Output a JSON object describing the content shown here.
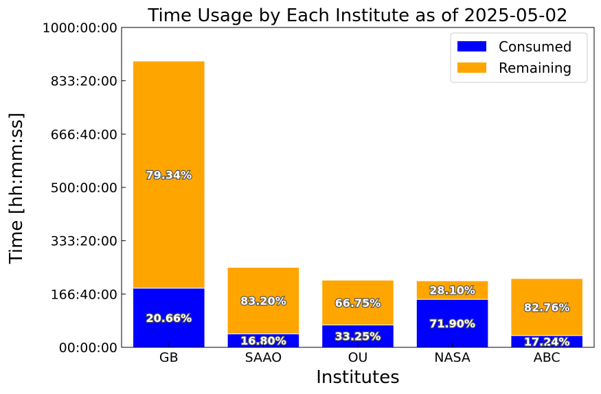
{
  "chart_data": {
    "type": "bar",
    "stacked": true,
    "title": "Time Usage by Each Institute as of 2025-05-02",
    "xlabel": "Institutes",
    "ylabel": "Time [hh:mm:ss]",
    "categories": [
      "GB",
      "SAAO",
      "OU",
      "NASA",
      "ABC"
    ],
    "ylim": [
      0,
      1000
    ],
    "yticks": [
      0,
      166.667,
      333.333,
      500,
      666.667,
      833.333,
      1000
    ],
    "ytick_labels": [
      "00:00:00",
      "166:40:00",
      "333:20:00",
      "500:00:00",
      "666:40:00",
      "833:20:00",
      "1000:00:00"
    ],
    "y_unit": "hours",
    "series": [
      {
        "name": "Consumed",
        "color": "#0000ff",
        "values": [
          185,
          42,
          70,
          150,
          37
        ],
        "labels": [
          "20.66%",
          "16.80%",
          "33.25%",
          "71.90%",
          "17.24%"
        ]
      },
      {
        "name": "Remaining",
        "color": "#ffa500",
        "values": [
          710,
          208,
          140,
          58,
          178
        ],
        "labels": [
          "79.34%",
          "83.20%",
          "66.75%",
          "28.10%",
          "82.76%"
        ]
      }
    ],
    "legend_position": "top-right",
    "grid": false
  }
}
